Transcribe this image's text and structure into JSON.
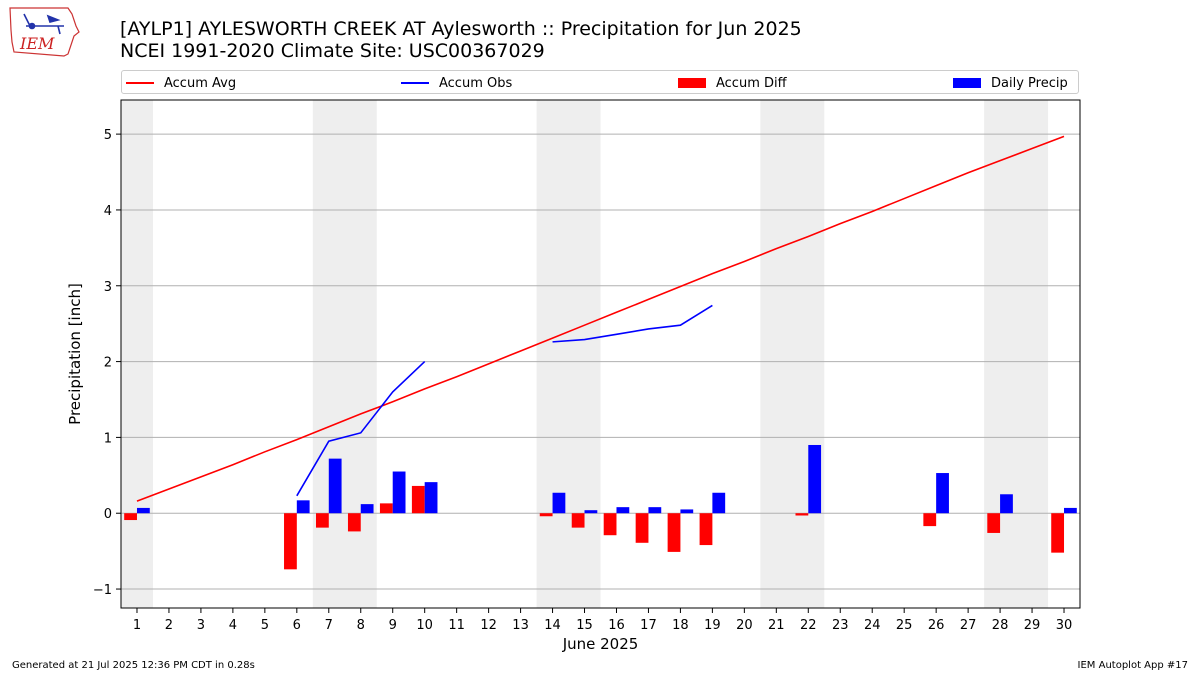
{
  "logo": {
    "text": "IEM"
  },
  "header": {
    "title_line1": "[AYLP1] AYLESWORTH CREEK  AT Aylesworth :: Precipitation for Jun 2025",
    "title_line2": "NCEI 1991-2020 Climate Site: USC00367029"
  },
  "legend": {
    "accum_avg": "Accum Avg",
    "accum_obs": "Accum Obs",
    "accum_diff": "Accum Diff",
    "daily_precip": "Daily Precip"
  },
  "colors": {
    "accum_avg": "#ff0000",
    "accum_obs": "#0000ff",
    "accum_diff": "#ff0000",
    "daily_precip": "#0000ff",
    "weekend_shade": "#eeeeee",
    "grid": "#b0b0b0"
  },
  "chart_data": {
    "type": "bar",
    "xlabel": "June 2025",
    "ylabel": "Precipitation [inch]",
    "xlim": [
      0.5,
      30.5
    ],
    "ylim": [
      -1.25,
      5.45
    ],
    "yticks": [
      -1,
      0,
      1,
      2,
      3,
      4,
      5
    ],
    "grid": "horizontal",
    "legend_position": "top",
    "days": [
      1,
      2,
      3,
      4,
      5,
      6,
      7,
      8,
      9,
      10,
      11,
      12,
      13,
      14,
      15,
      16,
      17,
      18,
      19,
      20,
      21,
      22,
      23,
      24,
      25,
      26,
      27,
      28,
      29,
      30
    ],
    "weekend_shading": [
      [
        0.5,
        1.5
      ],
      [
        6.5,
        8.5
      ],
      [
        13.5,
        15.5
      ],
      [
        20.5,
        22.5
      ],
      [
        27.5,
        29.5
      ]
    ],
    "series": [
      {
        "name": "Accum Avg",
        "type": "line",
        "x": [
          1,
          2,
          3,
          4,
          5,
          6,
          7,
          8,
          9,
          10,
          11,
          12,
          13,
          14,
          15,
          16,
          17,
          18,
          19,
          20,
          21,
          22,
          23,
          24,
          25,
          26,
          27,
          28,
          29,
          30
        ],
        "values": [
          0.16,
          0.32,
          0.48,
          0.64,
          0.81,
          0.97,
          1.14,
          1.31,
          1.47,
          1.64,
          1.8,
          1.97,
          2.14,
          2.31,
          2.48,
          2.65,
          2.82,
          2.99,
          3.16,
          3.32,
          3.49,
          3.65,
          3.82,
          3.98,
          4.15,
          4.32,
          4.49,
          4.65,
          4.81,
          4.97
        ]
      },
      {
        "name": "Accum Obs",
        "type": "line",
        "segments": [
          {
            "x": [
              6,
              7,
              8,
              9,
              10
            ],
            "values": [
              0.23,
              0.95,
              1.06,
              1.6,
              2.0
            ]
          },
          {
            "x": [
              14,
              15,
              16,
              17,
              18,
              19
            ],
            "values": [
              2.26,
              2.29,
              2.36,
              2.43,
              2.48,
              2.74
            ]
          }
        ]
      },
      {
        "name": "Accum Diff",
        "type": "bar",
        "x": [
          1,
          6,
          7,
          8,
          9,
          10,
          14,
          15,
          16,
          17,
          18,
          19,
          22,
          26,
          28,
          30
        ],
        "values": [
          -0.09,
          -0.74,
          -0.19,
          -0.24,
          0.13,
          0.36,
          -0.04,
          -0.19,
          -0.29,
          -0.39,
          -0.51,
          -0.42,
          -0.03,
          -0.17,
          -0.26,
          -0.52
        ]
      },
      {
        "name": "Daily Precip",
        "type": "bar",
        "x": [
          1,
          6,
          7,
          8,
          9,
          10,
          14,
          15,
          16,
          17,
          18,
          19,
          22,
          26,
          28,
          30
        ],
        "values": [
          0.07,
          0.17,
          0.72,
          0.12,
          0.55,
          0.41,
          0.27,
          0.04,
          0.08,
          0.08,
          0.05,
          0.27,
          0.9,
          0.53,
          0.25,
          0.07
        ]
      }
    ]
  },
  "footer": {
    "generated": "Generated at 21 Jul 2025 12:36 PM CDT in 0.28s",
    "app": "IEM Autoplot App #17"
  }
}
